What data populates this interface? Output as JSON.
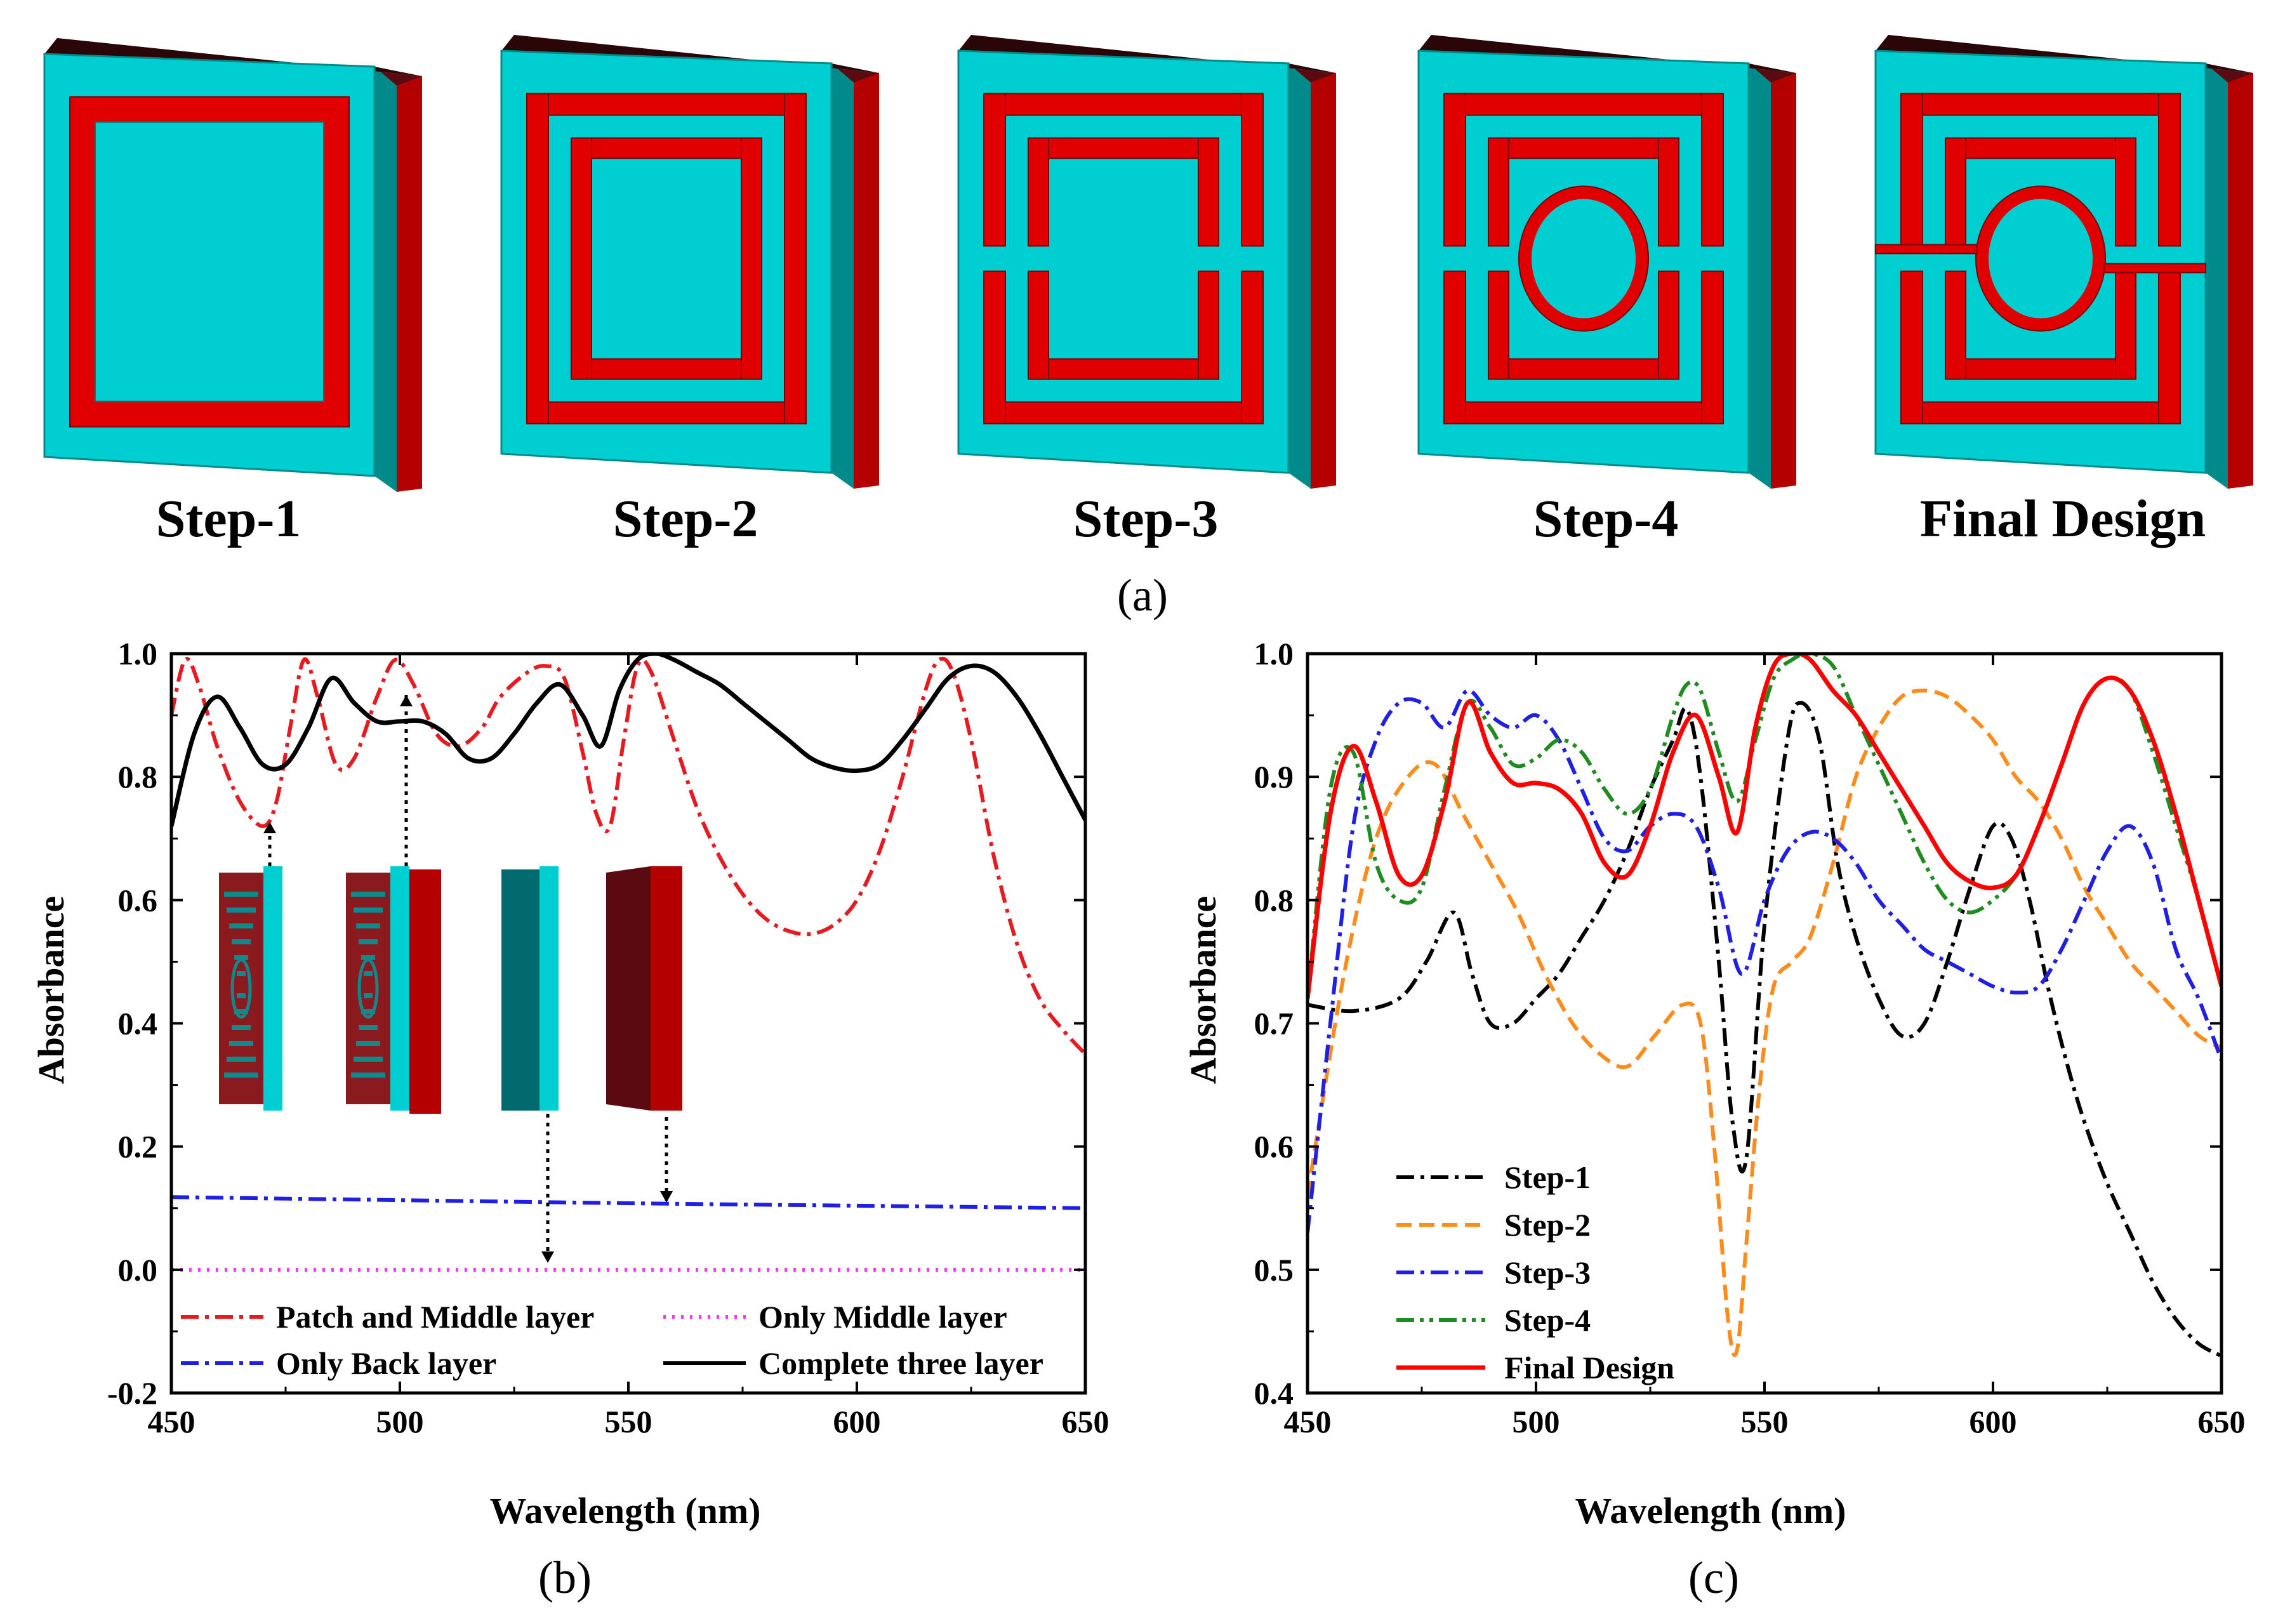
{
  "figure": {
    "steps": [
      "Step-1",
      "Step-2",
      "Step-3",
      "Step-4",
      "Final Design"
    ],
    "panel_labels": {
      "a": "(a)",
      "b": "(b)",
      "c": "(c)"
    },
    "colors": {
      "substrate": "#00CED1",
      "substrate_side": "#008b8b",
      "metal": "#e00000",
      "back_dark": "#5a0a10",
      "back_red": "#b50000"
    }
  },
  "chart_data": [
    {
      "id": "b",
      "type": "line",
      "xlabel": "Wavelength (nm)",
      "ylabel": "Absorbance",
      "xlim": [
        450,
        650
      ],
      "ylim": [
        -0.2,
        1.0
      ],
      "xticks": [
        "450",
        "500",
        "550",
        "600",
        "650"
      ],
      "yticks": [
        "-0.2",
        "0.0",
        "0.2",
        "0.4",
        "0.6",
        "0.8",
        "1.0"
      ],
      "legend": [
        "Patch and Middle layer",
        "Only Middle layer",
        "Only Back layer",
        "Complete three layer"
      ],
      "series": [
        {
          "name": "Patch and Middle layer",
          "color": "#e8191f",
          "dash": "dashdot",
          "x": [
            450,
            453,
            456,
            460,
            465,
            470,
            473,
            476,
            479,
            482,
            486,
            490,
            495,
            499,
            503,
            508,
            513,
            518,
            522,
            528,
            532,
            536,
            540,
            543,
            546,
            549,
            552,
            555,
            560,
            565,
            570,
            575,
            580,
            585,
            590,
            595,
            600,
            605,
            610,
            615,
            618,
            621,
            625,
            630,
            635,
            640,
            645,
            650
          ],
          "y": [
            0.9,
            0.99,
            0.95,
            0.85,
            0.76,
            0.72,
            0.76,
            0.88,
            0.99,
            0.93,
            0.82,
            0.83,
            0.93,
            0.99,
            0.95,
            0.87,
            0.85,
            0.88,
            0.93,
            0.97,
            0.98,
            0.96,
            0.84,
            0.74,
            0.72,
            0.86,
            0.98,
            0.97,
            0.86,
            0.75,
            0.67,
            0.61,
            0.57,
            0.55,
            0.545,
            0.56,
            0.6,
            0.68,
            0.8,
            0.94,
            0.99,
            0.97,
            0.86,
            0.67,
            0.53,
            0.44,
            0.39,
            0.35
          ]
        },
        {
          "name": "Only Middle layer",
          "color": "#ff33ff",
          "dash": "dot",
          "x": [
            450,
            650
          ],
          "y": [
            0.0,
            0.0
          ]
        },
        {
          "name": "Only Back layer",
          "color": "#1f1fe6",
          "dash": "dashdot",
          "x": [
            450,
            500,
            550,
            600,
            650
          ],
          "y": [
            0.118,
            0.113,
            0.108,
            0.104,
            0.1
          ]
        },
        {
          "name": "Complete three layer",
          "color": "#000000",
          "dash": "solid",
          "x": [
            450,
            455,
            460,
            465,
            470,
            475,
            480,
            485,
            490,
            495,
            500,
            505,
            510,
            515,
            520,
            525,
            530,
            535,
            540,
            544,
            548,
            552,
            556,
            560,
            565,
            570,
            575,
            580,
            585,
            590,
            595,
            600,
            605,
            610,
            615,
            620,
            625,
            630,
            635,
            640,
            645,
            650
          ],
          "y": [
            0.72,
            0.87,
            0.93,
            0.88,
            0.82,
            0.82,
            0.88,
            0.96,
            0.92,
            0.89,
            0.89,
            0.89,
            0.87,
            0.83,
            0.83,
            0.87,
            0.92,
            0.95,
            0.9,
            0.85,
            0.94,
            0.99,
            1.0,
            0.99,
            0.97,
            0.95,
            0.92,
            0.89,
            0.86,
            0.83,
            0.815,
            0.81,
            0.82,
            0.86,
            0.91,
            0.96,
            0.98,
            0.97,
            0.93,
            0.87,
            0.8,
            0.73
          ]
        }
      ]
    },
    {
      "id": "c",
      "type": "line",
      "xlabel": "Wavelength (nm)",
      "ylabel": "Absorbance",
      "xlim": [
        450,
        650
      ],
      "ylim": [
        0.4,
        1.0
      ],
      "xticks": [
        "450",
        "500",
        "550",
        "600",
        "650"
      ],
      "yticks": [
        "0.4",
        "0.5",
        "0.6",
        "0.7",
        "0.8",
        "0.9",
        "1.0"
      ],
      "legend": [
        "Step-1",
        "Step-2",
        "Step-3",
        "Step-4",
        "Final Design"
      ],
      "series": [
        {
          "name": "Step-1",
          "color": "#000000",
          "dash": "dashdot",
          "x": [
            450,
            460,
            470,
            476,
            482,
            486,
            490,
            495,
            500,
            505,
            510,
            515,
            520,
            525,
            530,
            533,
            536,
            540,
            543,
            546,
            550,
            555,
            558,
            562,
            566,
            570,
            575,
            580,
            585,
            590,
            595,
            600,
            604,
            608,
            612,
            616,
            620,
            625,
            630,
            635,
            640,
            645,
            650
          ],
          "y": [
            0.715,
            0.71,
            0.72,
            0.75,
            0.79,
            0.74,
            0.7,
            0.7,
            0.72,
            0.74,
            0.77,
            0.8,
            0.84,
            0.89,
            0.93,
            0.955,
            0.9,
            0.75,
            0.62,
            0.59,
            0.78,
            0.93,
            0.96,
            0.93,
            0.83,
            0.77,
            0.72,
            0.69,
            0.7,
            0.75,
            0.81,
            0.86,
            0.85,
            0.8,
            0.73,
            0.67,
            0.62,
            0.57,
            0.53,
            0.49,
            0.46,
            0.44,
            0.43
          ]
        },
        {
          "name": "Step-2",
          "color": "#ff8c1a",
          "dash": "dash",
          "x": [
            450,
            458,
            465,
            472,
            478,
            484,
            490,
            496,
            502,
            508,
            514,
            520,
            526,
            532,
            536,
            539,
            542,
            544,
            546,
            549,
            552,
            556,
            560,
            565,
            570,
            575,
            580,
            585,
            590,
            595,
            600,
            605,
            610,
            615,
            620,
            625,
            630,
            635,
            640,
            645,
            650
          ],
          "y": [
            0.56,
            0.74,
            0.85,
            0.9,
            0.91,
            0.87,
            0.83,
            0.79,
            0.74,
            0.7,
            0.675,
            0.665,
            0.69,
            0.715,
            0.7,
            0.6,
            0.46,
            0.435,
            0.52,
            0.65,
            0.73,
            0.75,
            0.77,
            0.83,
            0.9,
            0.94,
            0.965,
            0.97,
            0.965,
            0.95,
            0.93,
            0.9,
            0.88,
            0.85,
            0.81,
            0.78,
            0.75,
            0.73,
            0.71,
            0.69,
            0.68
          ]
        },
        {
          "name": "Step-3",
          "color": "#1f1fe6",
          "dash": "dashdot",
          "x": [
            450,
            455,
            460,
            465,
            470,
            475,
            480,
            485,
            490,
            495,
            500,
            505,
            510,
            515,
            520,
            525,
            530,
            535,
            540,
            545,
            550,
            555,
            560,
            565,
            570,
            575,
            580,
            585,
            590,
            595,
            600,
            605,
            610,
            615,
            620,
            625,
            630,
            635,
            640,
            645,
            650
          ],
          "y": [
            0.53,
            0.7,
            0.86,
            0.93,
            0.96,
            0.96,
            0.94,
            0.97,
            0.95,
            0.94,
            0.95,
            0.93,
            0.89,
            0.85,
            0.84,
            0.86,
            0.87,
            0.86,
            0.81,
            0.74,
            0.8,
            0.84,
            0.855,
            0.85,
            0.83,
            0.8,
            0.78,
            0.76,
            0.75,
            0.74,
            0.73,
            0.725,
            0.73,
            0.76,
            0.8,
            0.84,
            0.86,
            0.83,
            0.76,
            0.72,
            0.67
          ]
        },
        {
          "name": "Step-4",
          "color": "#1e8c1e",
          "dash": "dashdotdot",
          "x": [
            450,
            455,
            460,
            465,
            470,
            475,
            480,
            485,
            490,
            495,
            500,
            505,
            510,
            515,
            520,
            525,
            530,
            533,
            536,
            540,
            544,
            548,
            552,
            556,
            560,
            565,
            570,
            575,
            580,
            585,
            590,
            595,
            600,
            605,
            610,
            615,
            620,
            625,
            630,
            635,
            640,
            645,
            650
          ],
          "y": [
            0.72,
            0.89,
            0.92,
            0.83,
            0.8,
            0.81,
            0.89,
            0.96,
            0.94,
            0.91,
            0.915,
            0.93,
            0.92,
            0.89,
            0.87,
            0.89,
            0.95,
            0.975,
            0.97,
            0.92,
            0.88,
            0.93,
            0.98,
            0.995,
            1.0,
            0.99,
            0.95,
            0.91,
            0.87,
            0.83,
            0.8,
            0.79,
            0.8,
            0.82,
            0.86,
            0.91,
            0.96,
            0.98,
            0.97,
            0.92,
            0.86,
            0.8,
            0.73
          ]
        },
        {
          "name": "Final Design",
          "color": "#ff0000",
          "dash": "solid",
          "x": [
            450,
            455,
            460,
            465,
            470,
            475,
            480,
            485,
            490,
            495,
            500,
            505,
            510,
            515,
            520,
            525,
            530,
            535,
            540,
            544,
            548,
            552,
            556,
            560,
            565,
            570,
            575,
            580,
            585,
            590,
            595,
            600,
            605,
            610,
            615,
            620,
            625,
            630,
            635,
            640,
            645,
            650
          ],
          "y": [
            0.72,
            0.87,
            0.925,
            0.88,
            0.82,
            0.82,
            0.88,
            0.96,
            0.92,
            0.895,
            0.895,
            0.89,
            0.87,
            0.83,
            0.82,
            0.86,
            0.92,
            0.95,
            0.9,
            0.855,
            0.94,
            0.99,
            1.0,
            0.995,
            0.97,
            0.95,
            0.92,
            0.89,
            0.86,
            0.83,
            0.815,
            0.81,
            0.82,
            0.86,
            0.91,
            0.96,
            0.98,
            0.97,
            0.93,
            0.87,
            0.8,
            0.73
          ]
        }
      ]
    }
  ]
}
